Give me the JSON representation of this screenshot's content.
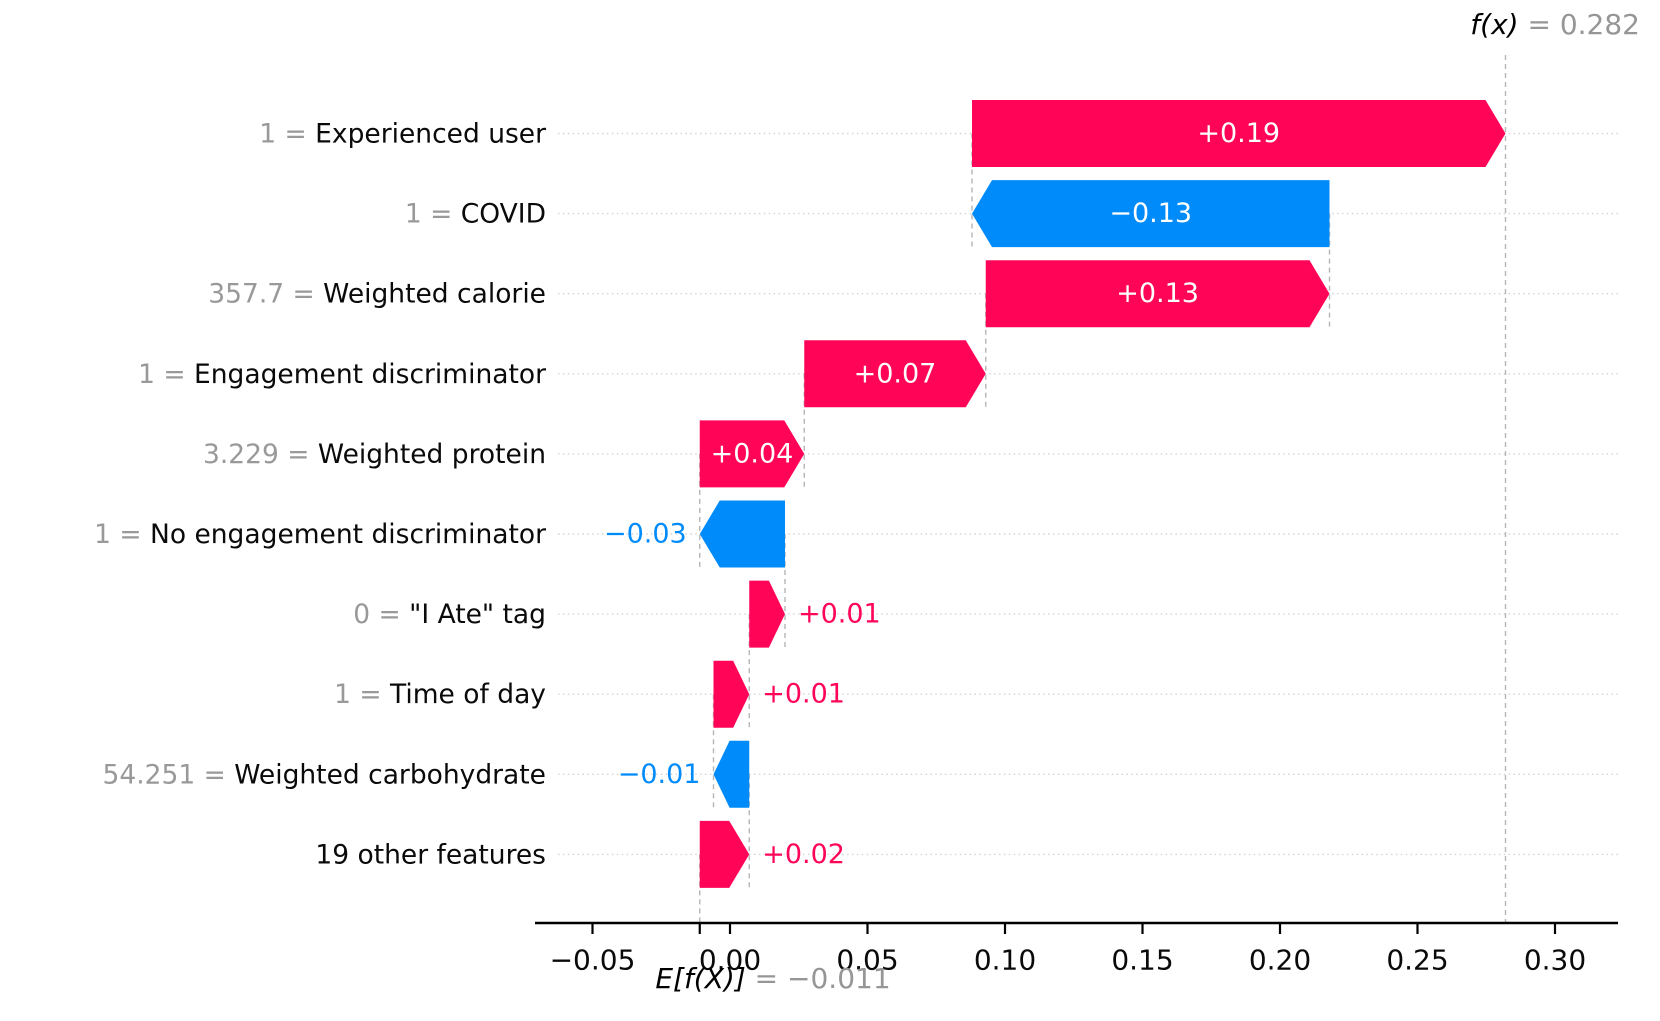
{
  "chart_data": {
    "type": "waterfall",
    "title": "SHAP waterfall explanation",
    "fx": {
      "prefix": "f(x)",
      "suffix": " = 0.282",
      "value": 0.282
    },
    "ef": {
      "prefix": "E[f(X)]",
      "suffix": " = −0.011",
      "value": -0.011
    },
    "axis": {
      "tick_values": [
        -0.05,
        0.0,
        0.05,
        0.1,
        0.15,
        0.2,
        0.25,
        0.3
      ],
      "tick_labels": [
        "−0.05",
        "0.00",
        "0.05",
        "0.10",
        "0.15",
        "0.20",
        "0.25",
        "0.30"
      ],
      "xlim": [
        -0.0625,
        0.3229
      ],
      "grid": "horizontal-dotted",
      "legend": "none"
    },
    "colors": {
      "positive": "#ff0457",
      "negative": "#008bfb",
      "bar_label_inside": "#ffffff",
      "grid": "#d4d4d4",
      "connector": "#b5b5b5",
      "muted_text": "#999999",
      "text": "#0a0a0a",
      "axis": "#000000"
    },
    "rows": [
      {
        "feature": "Experienced user",
        "feature_value": "1",
        "label": "+0.19",
        "value": 0.194,
        "start": 0.088,
        "end": 0.282,
        "sign": "positive",
        "label_placement": "inside"
      },
      {
        "feature": "COVID",
        "feature_value": "1",
        "label": "−0.13",
        "value": -0.13,
        "start": 0.218,
        "end": 0.088,
        "sign": "negative",
        "label_placement": "inside"
      },
      {
        "feature": "Weighted calorie",
        "feature_value": "357.7",
        "label": "+0.13",
        "value": 0.125,
        "start": 0.093,
        "end": 0.218,
        "sign": "positive",
        "label_placement": "inside"
      },
      {
        "feature": "Engagement discriminator",
        "feature_value": "1",
        "label": "+0.07",
        "value": 0.066,
        "start": 0.027,
        "end": 0.093,
        "sign": "positive",
        "label_placement": "inside"
      },
      {
        "feature": "Weighted protein",
        "feature_value": "3.229",
        "label": "+0.04",
        "value": 0.038,
        "start": -0.011,
        "end": 0.027,
        "sign": "positive",
        "label_placement": "inside"
      },
      {
        "feature": "No engagement discriminator",
        "feature_value": "1",
        "label": "−0.03",
        "value": -0.031,
        "start": 0.02,
        "end": -0.011,
        "sign": "negative",
        "label_placement": "outside"
      },
      {
        "feature": "\"I Ate\" tag",
        "feature_value": "0",
        "label": "+0.01",
        "value": 0.013,
        "start": 0.007,
        "end": 0.02,
        "sign": "positive",
        "label_placement": "outside"
      },
      {
        "feature": "Time of day",
        "feature_value": "1",
        "label": "+0.01",
        "value": 0.013,
        "start": -0.006,
        "end": 0.007,
        "sign": "positive",
        "label_placement": "outside"
      },
      {
        "feature": "Weighted carbohydrate",
        "feature_value": "54.251",
        "label": "−0.01",
        "value": -0.013,
        "start": 0.007,
        "end": -0.006,
        "sign": "negative",
        "label_placement": "outside"
      },
      {
        "feature": "19 other features",
        "feature_value": null,
        "label": "+0.02",
        "value": 0.018,
        "start": -0.011,
        "end": 0.007,
        "sign": "positive",
        "label_placement": "outside"
      }
    ]
  }
}
